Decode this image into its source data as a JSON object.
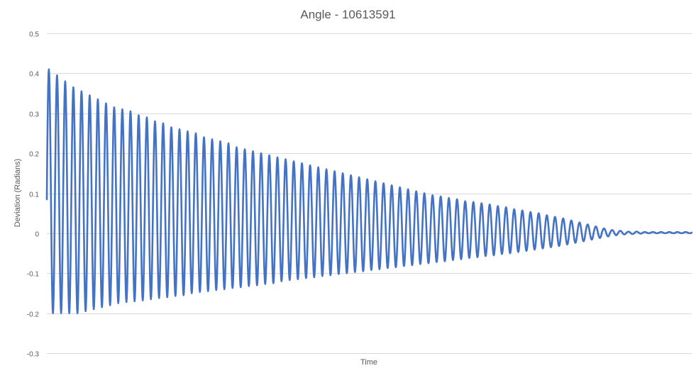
{
  "chart_data": {
    "type": "line",
    "title": "Angle - 10613591",
    "xlabel": "Time",
    "ylabel": "Deviation (Radians)",
    "ylim": [
      -0.3,
      0.5
    ],
    "yticks": [
      0.5,
      0.4,
      0.3,
      0.2,
      0.1,
      0,
      -0.1,
      -0.2,
      -0.3
    ],
    "ytick_labels": [
      "0.5",
      "0.4",
      "0.3",
      "0.2",
      "0.1",
      "0",
      "-0.1",
      "-0.2",
      "-0.3"
    ],
    "x_tick_labels_shown": false,
    "grid": "horizontal",
    "legend": "none",
    "series": [
      {
        "color": "#4472c4",
        "cycle_maxima": [
          0.41,
          0.395,
          0.38,
          0.365,
          0.355,
          0.345,
          0.335,
          0.325,
          0.315,
          0.31,
          0.305,
          0.295,
          0.29,
          0.28,
          0.275,
          0.265,
          0.26,
          0.255,
          0.25,
          0.24,
          0.235,
          0.23,
          0.225,
          0.215,
          0.21,
          0.205,
          0.2,
          0.195,
          0.19,
          0.185,
          0.18,
          0.175,
          0.17,
          0.165,
          0.16,
          0.155,
          0.15,
          0.145,
          0.14,
          0.135,
          0.13,
          0.125,
          0.12,
          0.115,
          0.11,
          0.105,
          0.1,
          0.095,
          0.092,
          0.088,
          0.085,
          0.08,
          0.078,
          0.075,
          0.072,
          0.068,
          0.065,
          0.06,
          0.057,
          0.053,
          0.05,
          0.045,
          0.041,
          0.037,
          0.032,
          0.027,
          0.022,
          0.017,
          0.012,
          0.008,
          0.006,
          0.004,
          0.004,
          0.003,
          0.003,
          0.003,
          0.003,
          0.003,
          0.003
        ],
        "cycle_minima": [
          -0.2,
          -0.2,
          -0.2,
          -0.2,
          -0.195,
          -0.19,
          -0.185,
          -0.18,
          -0.175,
          -0.172,
          -0.17,
          -0.168,
          -0.165,
          -0.162,
          -0.16,
          -0.157,
          -0.155,
          -0.15,
          -0.147,
          -0.145,
          -0.142,
          -0.14,
          -0.137,
          -0.135,
          -0.132,
          -0.13,
          -0.127,
          -0.125,
          -0.12,
          -0.117,
          -0.115,
          -0.112,
          -0.11,
          -0.107,
          -0.105,
          -0.102,
          -0.1,
          -0.097,
          -0.095,
          -0.092,
          -0.09,
          -0.087,
          -0.085,
          -0.082,
          -0.08,
          -0.077,
          -0.075,
          -0.072,
          -0.07,
          -0.067,
          -0.065,
          -0.062,
          -0.06,
          -0.057,
          -0.055,
          -0.052,
          -0.05,
          -0.047,
          -0.044,
          -0.041,
          -0.038,
          -0.035,
          -0.032,
          -0.028,
          -0.024,
          -0.02,
          -0.016,
          -0.012,
          -0.008,
          -0.005,
          -0.003,
          -0.002,
          -0.001,
          0.0,
          0.0,
          0.0,
          0.0,
          0.0,
          0.0
        ],
        "initial_value": 0.085,
        "final_value": 0.003
      }
    ]
  }
}
